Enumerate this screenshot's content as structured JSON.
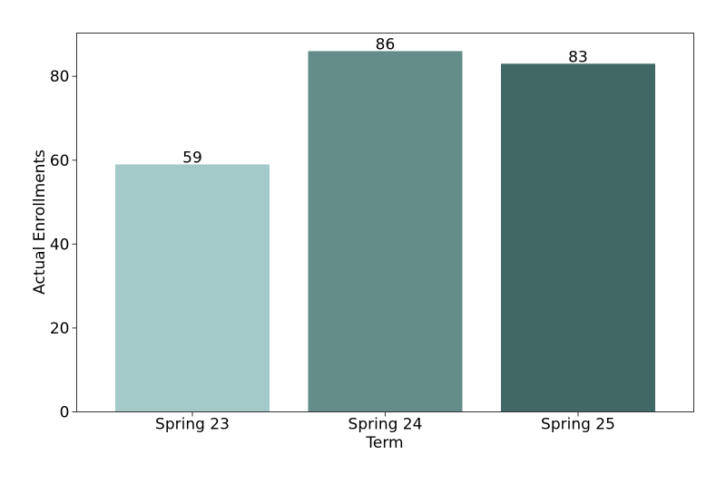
{
  "chart_data": {
    "type": "bar",
    "title": "",
    "xlabel": "Term",
    "ylabel": "Actual Enrollments",
    "categories": [
      "Spring 23",
      "Spring 24",
      "Spring 25"
    ],
    "values": [
      59,
      86,
      83
    ],
    "data_labels": [
      "59",
      "86",
      "83"
    ],
    "bar_colors": [
      "#a3cac8",
      "#648c89",
      "#416864"
    ],
    "ylim": [
      0,
      90.3
    ],
    "yticks": [
      0,
      20,
      40,
      60,
      80
    ],
    "ytick_labels": [
      "0",
      "20",
      "40",
      "60",
      "80"
    ],
    "grid": false,
    "legend": "none"
  }
}
